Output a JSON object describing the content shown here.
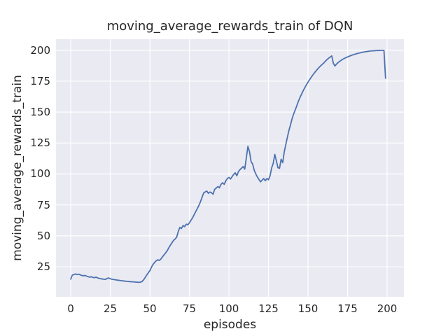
{
  "chart_data": {
    "type": "line",
    "title": "moving_average_rewards_train of DQN",
    "xlabel": "episodes",
    "ylabel": "moving_average_rewards_train",
    "xlim": [
      -9.3,
      210.6
    ],
    "ylim": [
      0.7,
      208.9
    ],
    "xticks": [
      0,
      25,
      50,
      75,
      100,
      125,
      150,
      175,
      200
    ],
    "yticks": [
      25,
      50,
      75,
      100,
      125,
      150,
      175,
      200
    ],
    "grid": true,
    "legend": false,
    "style": {
      "axes_background": "#eaeaf2",
      "grid_color": "#ffffff",
      "line_color": "#4c72b0",
      "text_color": "#262626",
      "line_width": 1.8,
      "grid_width": 1.2
    },
    "series": [
      {
        "name": "moving_average_rewards_train",
        "x_start": 0,
        "x_step": 1,
        "values": [
          15.0,
          18.2,
          18.6,
          19.2,
          18.7,
          19.0,
          18.4,
          18.0,
          17.6,
          18.0,
          17.4,
          17.0,
          16.5,
          16.9,
          16.4,
          16.1,
          16.6,
          16.0,
          15.6,
          15.3,
          15.1,
          14.9,
          14.7,
          15.6,
          15.9,
          15.3,
          14.9,
          14.7,
          14.5,
          14.3,
          14.1,
          13.9,
          13.7,
          13.6,
          13.4,
          13.3,
          13.1,
          13.0,
          12.9,
          12.8,
          12.7,
          12.6,
          12.5,
          12.4,
          12.5,
          13.0,
          14.3,
          16.2,
          18.2,
          20.0,
          21.8,
          24.5,
          26.8,
          28.4,
          29.8,
          30.6,
          30.1,
          31.2,
          33.0,
          34.6,
          36.2,
          38.0,
          40.3,
          42.4,
          44.4,
          46.3,
          47.4,
          49.0,
          53.5,
          56.8,
          55.9,
          58.3,
          57.4,
          59.4,
          58.9,
          60.5,
          62.5,
          64.5,
          67.0,
          69.5,
          72.0,
          74.5,
          77.5,
          81.0,
          84.5,
          85.5,
          86.2,
          84.3,
          85.4,
          84.8,
          83.6,
          87.6,
          88.6,
          89.8,
          88.8,
          91.6,
          92.9,
          91.6,
          94.3,
          96.3,
          97.2,
          95.9,
          97.8,
          99.6,
          100.9,
          98.5,
          101.9,
          103.5,
          104.7,
          106.0,
          103.9,
          113.0,
          122.3,
          118.0,
          110.0,
          108.0,
          103.0,
          100.0,
          97.5,
          95.5,
          93.6,
          95.0,
          96.3,
          94.5,
          96.3,
          95.3,
          98.5,
          104.8,
          108.5,
          115.8,
          110.5,
          105.0,
          104.6,
          111.9,
          109.1,
          118.0,
          124.0,
          130.0,
          135.5,
          140.0,
          145.0,
          148.8,
          152.0,
          155.5,
          159.0,
          162.0,
          164.8,
          167.4,
          169.8,
          172.1,
          174.2,
          176.2,
          178.1,
          179.9,
          181.6,
          183.2,
          184.7,
          186.1,
          187.4,
          188.6,
          189.7,
          191.2,
          192.4,
          193.5,
          194.5,
          195.4,
          189.5,
          187.2,
          188.8,
          190.0,
          191.0,
          191.9,
          192.7,
          193.4,
          194.0,
          194.6,
          195.1,
          195.6,
          196.1,
          196.5,
          196.9,
          197.3,
          197.6,
          197.9,
          198.2,
          198.5,
          198.7,
          198.9,
          199.1,
          199.3,
          199.4,
          199.5,
          199.6,
          199.7,
          199.75,
          199.8,
          199.85,
          199.9,
          199.9,
          177.3
        ]
      }
    ]
  }
}
